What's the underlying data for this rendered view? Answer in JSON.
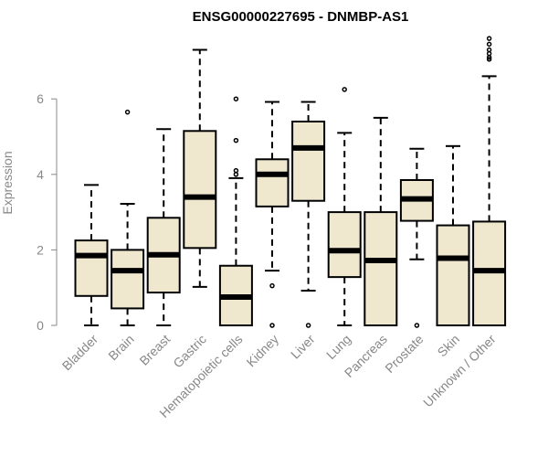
{
  "chart_data": {
    "type": "boxplot",
    "title": "ENSG00000227695 - DNMBP-AS1",
    "xlabel": "",
    "ylabel": "Expression",
    "ylim": [
      0,
      7.6
    ],
    "yticks": [
      0,
      2,
      4,
      6
    ],
    "box_color": "#efe8cf",
    "categories": [
      "Bladder",
      "Brain",
      "Breast",
      "Gastric",
      "Hematopoietic cells",
      "Kidney",
      "Liver",
      "Lung",
      "Pancreas",
      "Prostate",
      "Skin",
      "Unknown / Other"
    ],
    "boxes": [
      {
        "min": 0,
        "q1": 0.78,
        "median": 1.85,
        "q3": 2.25,
        "max": 3.72,
        "outliers": []
      },
      {
        "min": 0,
        "q1": 0.45,
        "median": 1.45,
        "q3": 2.0,
        "max": 3.22,
        "outliers": [
          5.65
        ]
      },
      {
        "min": 0,
        "q1": 0.87,
        "median": 1.87,
        "q3": 2.85,
        "max": 5.2,
        "outliers": []
      },
      {
        "min": 1.02,
        "q1": 2.05,
        "median": 3.4,
        "q3": 5.15,
        "max": 7.3,
        "outliers": []
      },
      {
        "min": 0,
        "q1": 0,
        "median": 0.75,
        "q3": 1.58,
        "max": 3.9,
        "outliers": [
          4.0,
          4.1,
          4.9,
          6.0
        ]
      },
      {
        "min": 1.45,
        "q1": 3.15,
        "median": 4.0,
        "q3": 4.4,
        "max": 5.92,
        "outliers": [
          0,
          1.05
        ]
      },
      {
        "min": 0.92,
        "q1": 3.3,
        "median": 4.7,
        "q3": 5.4,
        "max": 5.92,
        "outliers": [
          0
        ]
      },
      {
        "min": 0,
        "q1": 1.28,
        "median": 1.98,
        "q3": 3.0,
        "max": 5.1,
        "outliers": [
          6.25
        ]
      },
      {
        "min": 0,
        "q1": 0,
        "median": 1.72,
        "q3": 3.0,
        "max": 5.5,
        "outliers": []
      },
      {
        "min": 1.75,
        "q1": 2.77,
        "median": 3.35,
        "q3": 3.85,
        "max": 4.68,
        "outliers": [
          0
        ]
      },
      {
        "min": 0,
        "q1": 0,
        "median": 1.78,
        "q3": 2.65,
        "max": 4.75,
        "outliers": []
      },
      {
        "min": 0,
        "q1": 0,
        "median": 1.45,
        "q3": 2.75,
        "max": 6.6,
        "outliers": [
          7.05,
          7.1,
          7.2,
          7.3,
          7.45,
          7.6
        ]
      }
    ]
  }
}
